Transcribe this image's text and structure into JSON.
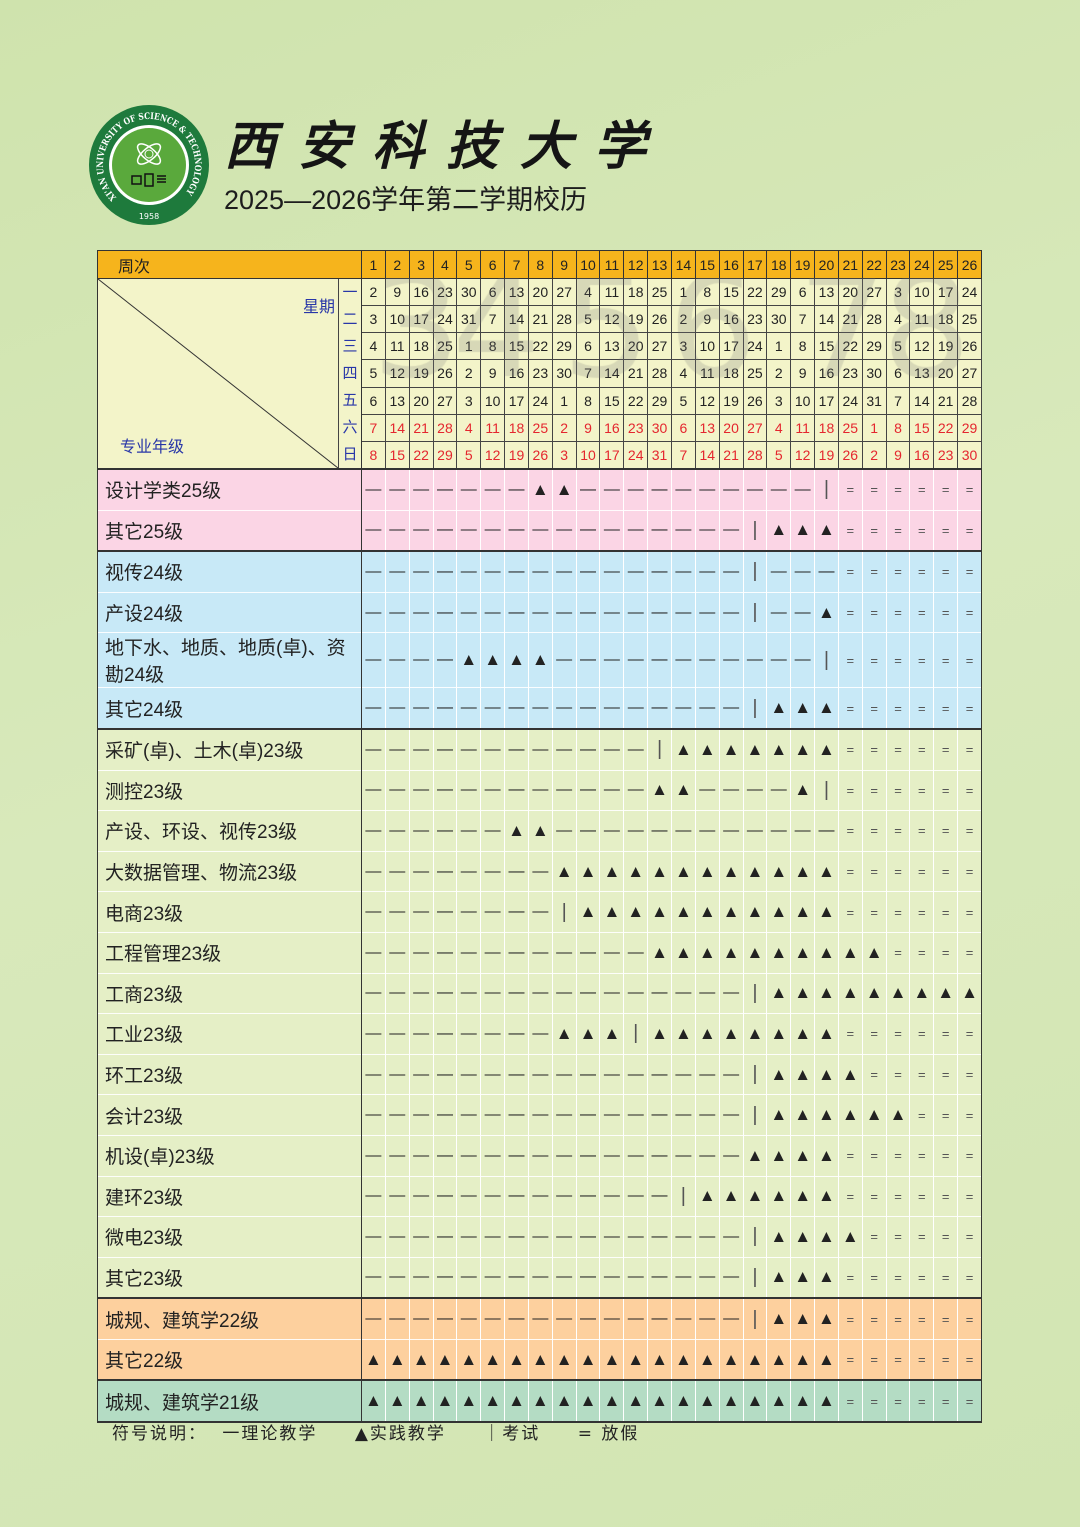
{
  "header": {
    "school_name": "西安科技大学",
    "title": "2025—2026学年第二学期校历",
    "logo_ring_text": "XI'AN UNIVERSITY OF SCIENCE & TECHNOLOGY",
    "logo_year": "1958"
  },
  "calendar": {
    "week_header_label": "周次",
    "weekday_header_label": "星期",
    "major_header_label": "专业年级",
    "weeks": [
      "1",
      "2",
      "3",
      "4",
      "5",
      "6",
      "7",
      "8",
      "9",
      "10",
      "11",
      "12",
      "13",
      "14",
      "15",
      "16",
      "17",
      "18",
      "19",
      "20",
      "21",
      "22",
      "23",
      "24",
      "25",
      "26"
    ],
    "watermark_months": [
      "3",
      "4",
      "5",
      "6",
      "7",
      "8"
    ],
    "weekdays": [
      {
        "label": "一",
        "weekend": false,
        "days": [
          2,
          9,
          16,
          23,
          30,
          6,
          13,
          20,
          27,
          4,
          11,
          18,
          25,
          1,
          8,
          15,
          22,
          29,
          6,
          13,
          20,
          27,
          3,
          10,
          17,
          24
        ]
      },
      {
        "label": "二",
        "weekend": false,
        "days": [
          3,
          10,
          17,
          24,
          31,
          7,
          14,
          21,
          28,
          5,
          12,
          19,
          26,
          2,
          9,
          16,
          23,
          30,
          7,
          14,
          21,
          28,
          4,
          11,
          18,
          25
        ]
      },
      {
        "label": "三",
        "weekend": false,
        "days": [
          4,
          11,
          18,
          25,
          1,
          8,
          15,
          22,
          29,
          6,
          13,
          20,
          27,
          3,
          10,
          17,
          24,
          1,
          8,
          15,
          22,
          29,
          5,
          12,
          19,
          26
        ]
      },
      {
        "label": "四",
        "weekend": false,
        "days": [
          5,
          12,
          19,
          26,
          2,
          9,
          16,
          23,
          30,
          7,
          14,
          21,
          28,
          4,
          11,
          18,
          25,
          2,
          9,
          16,
          23,
          30,
          6,
          13,
          20,
          27
        ]
      },
      {
        "label": "五",
        "weekend": false,
        "days": [
          6,
          13,
          20,
          27,
          3,
          10,
          17,
          24,
          1,
          8,
          15,
          22,
          29,
          5,
          12,
          19,
          26,
          3,
          10,
          17,
          24,
          31,
          7,
          14,
          21,
          28
        ]
      },
      {
        "label": "六",
        "weekend": true,
        "days": [
          7,
          14,
          21,
          28,
          4,
          11,
          18,
          25,
          2,
          9,
          16,
          23,
          30,
          6,
          13,
          20,
          27,
          4,
          11,
          18,
          25,
          1,
          8,
          15,
          22,
          29
        ]
      },
      {
        "label": "日",
        "weekend": true,
        "days": [
          8,
          15,
          22,
          29,
          5,
          12,
          19,
          26,
          3,
          10,
          17,
          24,
          31,
          7,
          14,
          21,
          28,
          5,
          12,
          19,
          26,
          2,
          9,
          16,
          23,
          30
        ]
      }
    ],
    "groups": [
      {
        "color": "#fbd5e5",
        "rows": [
          {
            "name": "设计学类25级",
            "weeks": [
              "—",
              "—",
              "—",
              "—",
              "—",
              "—",
              "—",
              "▲",
              "▲",
              "—",
              "—",
              "—",
              "—",
              "—",
              "—",
              "—",
              "—",
              "—",
              "—",
              "|",
              "=",
              "=",
              "=",
              "=",
              "=",
              "="
            ]
          },
          {
            "name": "其它25级",
            "weeks": [
              "—",
              "—",
              "—",
              "—",
              "—",
              "—",
              "—",
              "—",
              "—",
              "—",
              "—",
              "—",
              "—",
              "—",
              "—",
              "—",
              "|",
              "▲",
              "▲",
              "▲",
              "=",
              "=",
              "=",
              "=",
              "=",
              "="
            ]
          }
        ]
      },
      {
        "color": "#c8e9f7",
        "rows": [
          {
            "name": "视传24级",
            "weeks": [
              "—",
              "—",
              "—",
              "—",
              "—",
              "—",
              "—",
              "—",
              "—",
              "—",
              "—",
              "—",
              "—",
              "—",
              "—",
              "—",
              "|",
              "—",
              "—",
              "—",
              "=",
              "=",
              "=",
              "=",
              "=",
              "="
            ]
          },
          {
            "name": "产设24级",
            "weeks": [
              "—",
              "—",
              "—",
              "—",
              "—",
              "—",
              "—",
              "—",
              "—",
              "—",
              "—",
              "—",
              "—",
              "—",
              "—",
              "—",
              "|",
              "—",
              "—",
              "▲",
              "=",
              "=",
              "=",
              "=",
              "=",
              "="
            ]
          },
          {
            "name": "地下水、地质、地质(卓)、资勘24级",
            "weeks": [
              "—",
              "—",
              "—",
              "—",
              "▲",
              "▲",
              "▲",
              "▲",
              "—",
              "—",
              "—",
              "—",
              "—",
              "—",
              "—",
              "—",
              "—",
              "—",
              "—",
              "|",
              "=",
              "=",
              "=",
              "=",
              "=",
              "="
            ]
          },
          {
            "name": "其它24级",
            "weeks": [
              "—",
              "—",
              "—",
              "—",
              "—",
              "—",
              "—",
              "—",
              "—",
              "—",
              "—",
              "—",
              "—",
              "—",
              "—",
              "—",
              "|",
              "▲",
              "▲",
              "▲",
              "=",
              "=",
              "=",
              "=",
              "=",
              "="
            ]
          }
        ]
      },
      {
        "color": "#e5efc6",
        "rows": [
          {
            "name": "采矿(卓)、土木(卓)23级",
            "weeks": [
              "—",
              "—",
              "—",
              "—",
              "—",
              "—",
              "—",
              "—",
              "—",
              "—",
              "—",
              "—",
              "|",
              "▲",
              "▲",
              "▲",
              "▲",
              "▲",
              "▲",
              "▲",
              "=",
              "=",
              "=",
              "=",
              "=",
              "="
            ]
          },
          {
            "name": "测控23级",
            "weeks": [
              "—",
              "—",
              "—",
              "—",
              "—",
              "—",
              "—",
              "—",
              "—",
              "—",
              "—",
              "—",
              "▲",
              "▲",
              "—",
              "—",
              "—",
              "—",
              "▲",
              "|",
              "=",
              "=",
              "=",
              "=",
              "=",
              "="
            ]
          },
          {
            "name": "产设、环设、视传23级",
            "weeks": [
              "—",
              "—",
              "—",
              "—",
              "—",
              "—",
              "▲",
              "▲",
              "—",
              "—",
              "—",
              "—",
              "—",
              "—",
              "—",
              "—",
              "—",
              "—",
              "—",
              "—",
              "=",
              "=",
              "=",
              "=",
              "=",
              "="
            ]
          },
          {
            "name": "大数据管理、物流23级",
            "weeks": [
              "—",
              "—",
              "—",
              "—",
              "—",
              "—",
              "—",
              "—",
              "▲",
              "▲",
              "▲",
              "▲",
              "▲",
              "▲",
              "▲",
              "▲",
              "▲",
              "▲",
              "▲",
              "▲",
              "=",
              "=",
              "=",
              "=",
              "=",
              "="
            ]
          },
          {
            "name": "电商23级",
            "weeks": [
              "—",
              "—",
              "—",
              "—",
              "—",
              "—",
              "—",
              "—",
              "|",
              "▲",
              "▲",
              "▲",
              "▲",
              "▲",
              "▲",
              "▲",
              "▲",
              "▲",
              "▲",
              "▲",
              "=",
              "=",
              "=",
              "=",
              "=",
              "="
            ]
          },
          {
            "name": "工程管理23级",
            "weeks": [
              "—",
              "—",
              "—",
              "—",
              "—",
              "—",
              "—",
              "—",
              "—",
              "—",
              "—",
              "—",
              "▲",
              "▲",
              "▲",
              "▲",
              "▲",
              "▲",
              "▲",
              "▲",
              "▲",
              "▲",
              "=",
              "=",
              "=",
              "="
            ]
          },
          {
            "name": "工商23级",
            "weeks": [
              "—",
              "—",
              "—",
              "—",
              "—",
              "—",
              "—",
              "—",
              "—",
              "—",
              "—",
              "—",
              "—",
              "—",
              "—",
              "—",
              "|",
              "▲",
              "▲",
              "▲",
              "▲",
              "▲",
              "▲",
              "▲",
              "▲",
              "▲"
            ]
          },
          {
            "name": "工业23级",
            "weeks": [
              "—",
              "—",
              "—",
              "—",
              "—",
              "—",
              "—",
              "—",
              "▲",
              "▲",
              "▲",
              "|",
              "▲",
              "▲",
              "▲",
              "▲",
              "▲",
              "▲",
              "▲",
              "▲",
              "=",
              "=",
              "=",
              "=",
              "=",
              "="
            ]
          },
          {
            "name": "环工23级",
            "weeks": [
              "—",
              "—",
              "—",
              "—",
              "—",
              "—",
              "—",
              "—",
              "—",
              "—",
              "—",
              "—",
              "—",
              "—",
              "—",
              "—",
              "|",
              "▲",
              "▲",
              "▲",
              "▲",
              "=",
              "=",
              "=",
              "=",
              "="
            ]
          },
          {
            "name": "会计23级",
            "weeks": [
              "—",
              "—",
              "—",
              "—",
              "—",
              "—",
              "—",
              "—",
              "—",
              "—",
              "—",
              "—",
              "—",
              "—",
              "—",
              "—",
              "|",
              "▲",
              "▲",
              "▲",
              "▲",
              "▲",
              "▲",
              "=",
              "=",
              "="
            ]
          },
          {
            "name": "机设(卓)23级",
            "weeks": [
              "—",
              "—",
              "—",
              "—",
              "—",
              "—",
              "—",
              "—",
              "—",
              "—",
              "—",
              "—",
              "—",
              "—",
              "—",
              "—",
              "▲",
              "▲",
              "▲",
              "▲",
              "=",
              "=",
              "=",
              "=",
              "=",
              "="
            ]
          },
          {
            "name": "建环23级",
            "weeks": [
              "—",
              "—",
              "—",
              "—",
              "—",
              "—",
              "—",
              "—",
              "—",
              "—",
              "—",
              "—",
              "—",
              "|",
              "▲",
              "▲",
              "▲",
              "▲",
              "▲",
              "▲",
              "=",
              "=",
              "=",
              "=",
              "=",
              "="
            ]
          },
          {
            "name": "微电23级",
            "weeks": [
              "—",
              "—",
              "—",
              "—",
              "—",
              "—",
              "—",
              "—",
              "—",
              "—",
              "—",
              "—",
              "—",
              "—",
              "—",
              "—",
              "|",
              "▲",
              "▲",
              "▲",
              "▲",
              "=",
              "=",
              "=",
              "=",
              "="
            ]
          },
          {
            "name": "其它23级",
            "weeks": [
              "—",
              "—",
              "—",
              "—",
              "—",
              "—",
              "—",
              "—",
              "—",
              "—",
              "—",
              "—",
              "—",
              "—",
              "—",
              "—",
              "|",
              "▲",
              "▲",
              "▲",
              "=",
              "=",
              "=",
              "=",
              "=",
              "="
            ]
          }
        ]
      },
      {
        "color": "#fdd09e",
        "rows": [
          {
            "name": "城规、建筑学22级",
            "weeks": [
              "—",
              "—",
              "—",
              "—",
              "—",
              "—",
              "—",
              "—",
              "—",
              "—",
              "—",
              "—",
              "—",
              "—",
              "—",
              "—",
              "|",
              "▲",
              "▲",
              "▲",
              "=",
              "=",
              "=",
              "=",
              "=",
              "="
            ]
          },
          {
            "name": "其它22级",
            "weeks": [
              "▲",
              "▲",
              "▲",
              "▲",
              "▲",
              "▲",
              "▲",
              "▲",
              "▲",
              "▲",
              "▲",
              "▲",
              "▲",
              "▲",
              "▲",
              "▲",
              "▲",
              "▲",
              "▲",
              "▲",
              "=",
              "=",
              "=",
              "=",
              "=",
              "="
            ]
          }
        ]
      },
      {
        "color": "#b4dcc4",
        "rows": [
          {
            "name": "城规、建筑学21级",
            "weeks": [
              "▲",
              "▲",
              "▲",
              "▲",
              "▲",
              "▲",
              "▲",
              "▲",
              "▲",
              "▲",
              "▲",
              "▲",
              "▲",
              "▲",
              "▲",
              "▲",
              "▲",
              "▲",
              "▲",
              "▲",
              "=",
              "=",
              "=",
              "=",
              "=",
              "="
            ]
          }
        ]
      }
    ]
  },
  "legend": {
    "title": "符号说明：",
    "items": [
      "一理论教学",
      "▲实践教学",
      "｜考试",
      "= 放假"
    ]
  },
  "colors": {
    "header": "#f6b41c",
    "date_bg": "#f3f4c9",
    "weekday_text": "#2836a8",
    "weekend_text": "#e4262e"
  }
}
